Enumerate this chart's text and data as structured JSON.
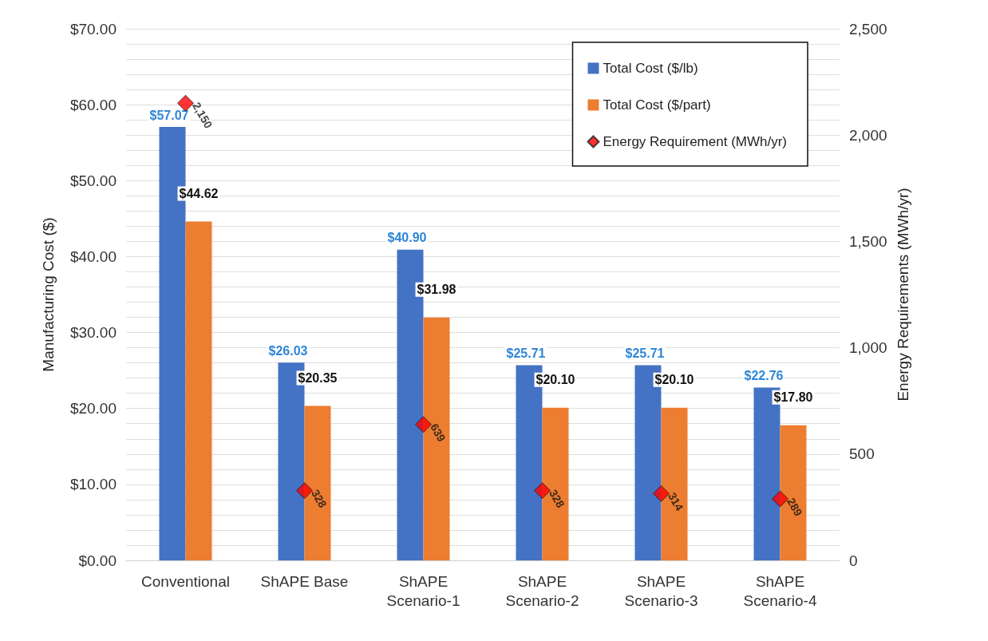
{
  "chart_data": {
    "type": "bar",
    "ylabel": "Manufacturing Cost ($)",
    "y2label": "Energy Requirements (MWh/yr)",
    "categories": [
      "Conventional",
      "ShAPE Base",
      "ShAPE\nScenario-1",
      "ShAPE\nScenario-2",
      "ShAPE\nScenario-3",
      "ShAPE\nScenario-4"
    ],
    "series": [
      {
        "name": "Total Cost ($/lb)",
        "color": "#4472c4",
        "values": [
          57.07,
          26.03,
          40.9,
          25.71,
          25.71,
          22.76
        ],
        "value_labels": [
          "$57.07",
          "$26.03",
          "$40.90",
          "$25.71",
          "$25.71",
          "$22.76"
        ]
      },
      {
        "name": "Total Cost ($/part)",
        "color": "#ed7d31",
        "values": [
          44.62,
          20.35,
          31.98,
          20.1,
          20.1,
          17.8
        ],
        "value_labels": [
          "$44.62",
          "$20.35",
          "$31.98",
          "$20.10",
          "$20.10",
          "$17.80"
        ]
      },
      {
        "name": "Energy Requirement (MWh/yr)",
        "type": "scatter",
        "axis": "y2",
        "marker": "diamond",
        "color": "#ff0000",
        "values": [
          2150,
          328,
          639,
          328,
          314,
          289
        ],
        "value_labels": [
          "2,150",
          "328",
          "639",
          "328",
          "314",
          "289"
        ]
      }
    ],
    "ylim": [
      0,
      70
    ],
    "yticks": [
      {
        "value": 0,
        "label": "$0.00"
      },
      {
        "value": 2,
        "label": null
      },
      {
        "value": 4,
        "label": null
      },
      {
        "value": 6,
        "label": null
      },
      {
        "value": 8,
        "label": null
      },
      {
        "value": 10,
        "label": "$10.00"
      },
      {
        "value": 12,
        "label": null
      },
      {
        "value": 14,
        "label": null
      },
      {
        "value": 16,
        "label": null
      },
      {
        "value": 18,
        "label": null
      },
      {
        "value": 20,
        "label": "$20.00"
      },
      {
        "value": 22,
        "label": null
      },
      {
        "value": 24,
        "label": null
      },
      {
        "value": 26,
        "label": null
      },
      {
        "value": 28,
        "label": null
      },
      {
        "value": 30,
        "label": "$30.00"
      },
      {
        "value": 32,
        "label": null
      },
      {
        "value": 34,
        "label": null
      },
      {
        "value": 36,
        "label": null
      },
      {
        "value": 38,
        "label": null
      },
      {
        "value": 40,
        "label": "$40.00"
      },
      {
        "value": 42,
        "label": null
      },
      {
        "value": 44,
        "label": null
      },
      {
        "value": 46,
        "label": null
      },
      {
        "value": 48,
        "label": null
      },
      {
        "value": 50,
        "label": "$50.00"
      },
      {
        "value": 52,
        "label": null
      },
      {
        "value": 54,
        "label": null
      },
      {
        "value": 56,
        "label": null
      },
      {
        "value": 58,
        "label": null
      },
      {
        "value": 60,
        "label": "$60.00"
      },
      {
        "value": 62,
        "label": null
      },
      {
        "value": 64,
        "label": null
      },
      {
        "value": 66,
        "label": null
      },
      {
        "value": 68,
        "label": null
      },
      {
        "value": 70,
        "label": "$70.00"
      }
    ],
    "y2lim": [
      0,
      2500
    ],
    "y2ticks": [
      0,
      500,
      {
        "value": 1000,
        "label": "1,000"
      },
      {
        "value": 1500,
        "label": "1,500"
      },
      {
        "value": 2000,
        "label": "2,000"
      },
      {
        "value": 2500,
        "label": "2,500"
      }
    ],
    "grid": "y",
    "legend": "top right"
  }
}
